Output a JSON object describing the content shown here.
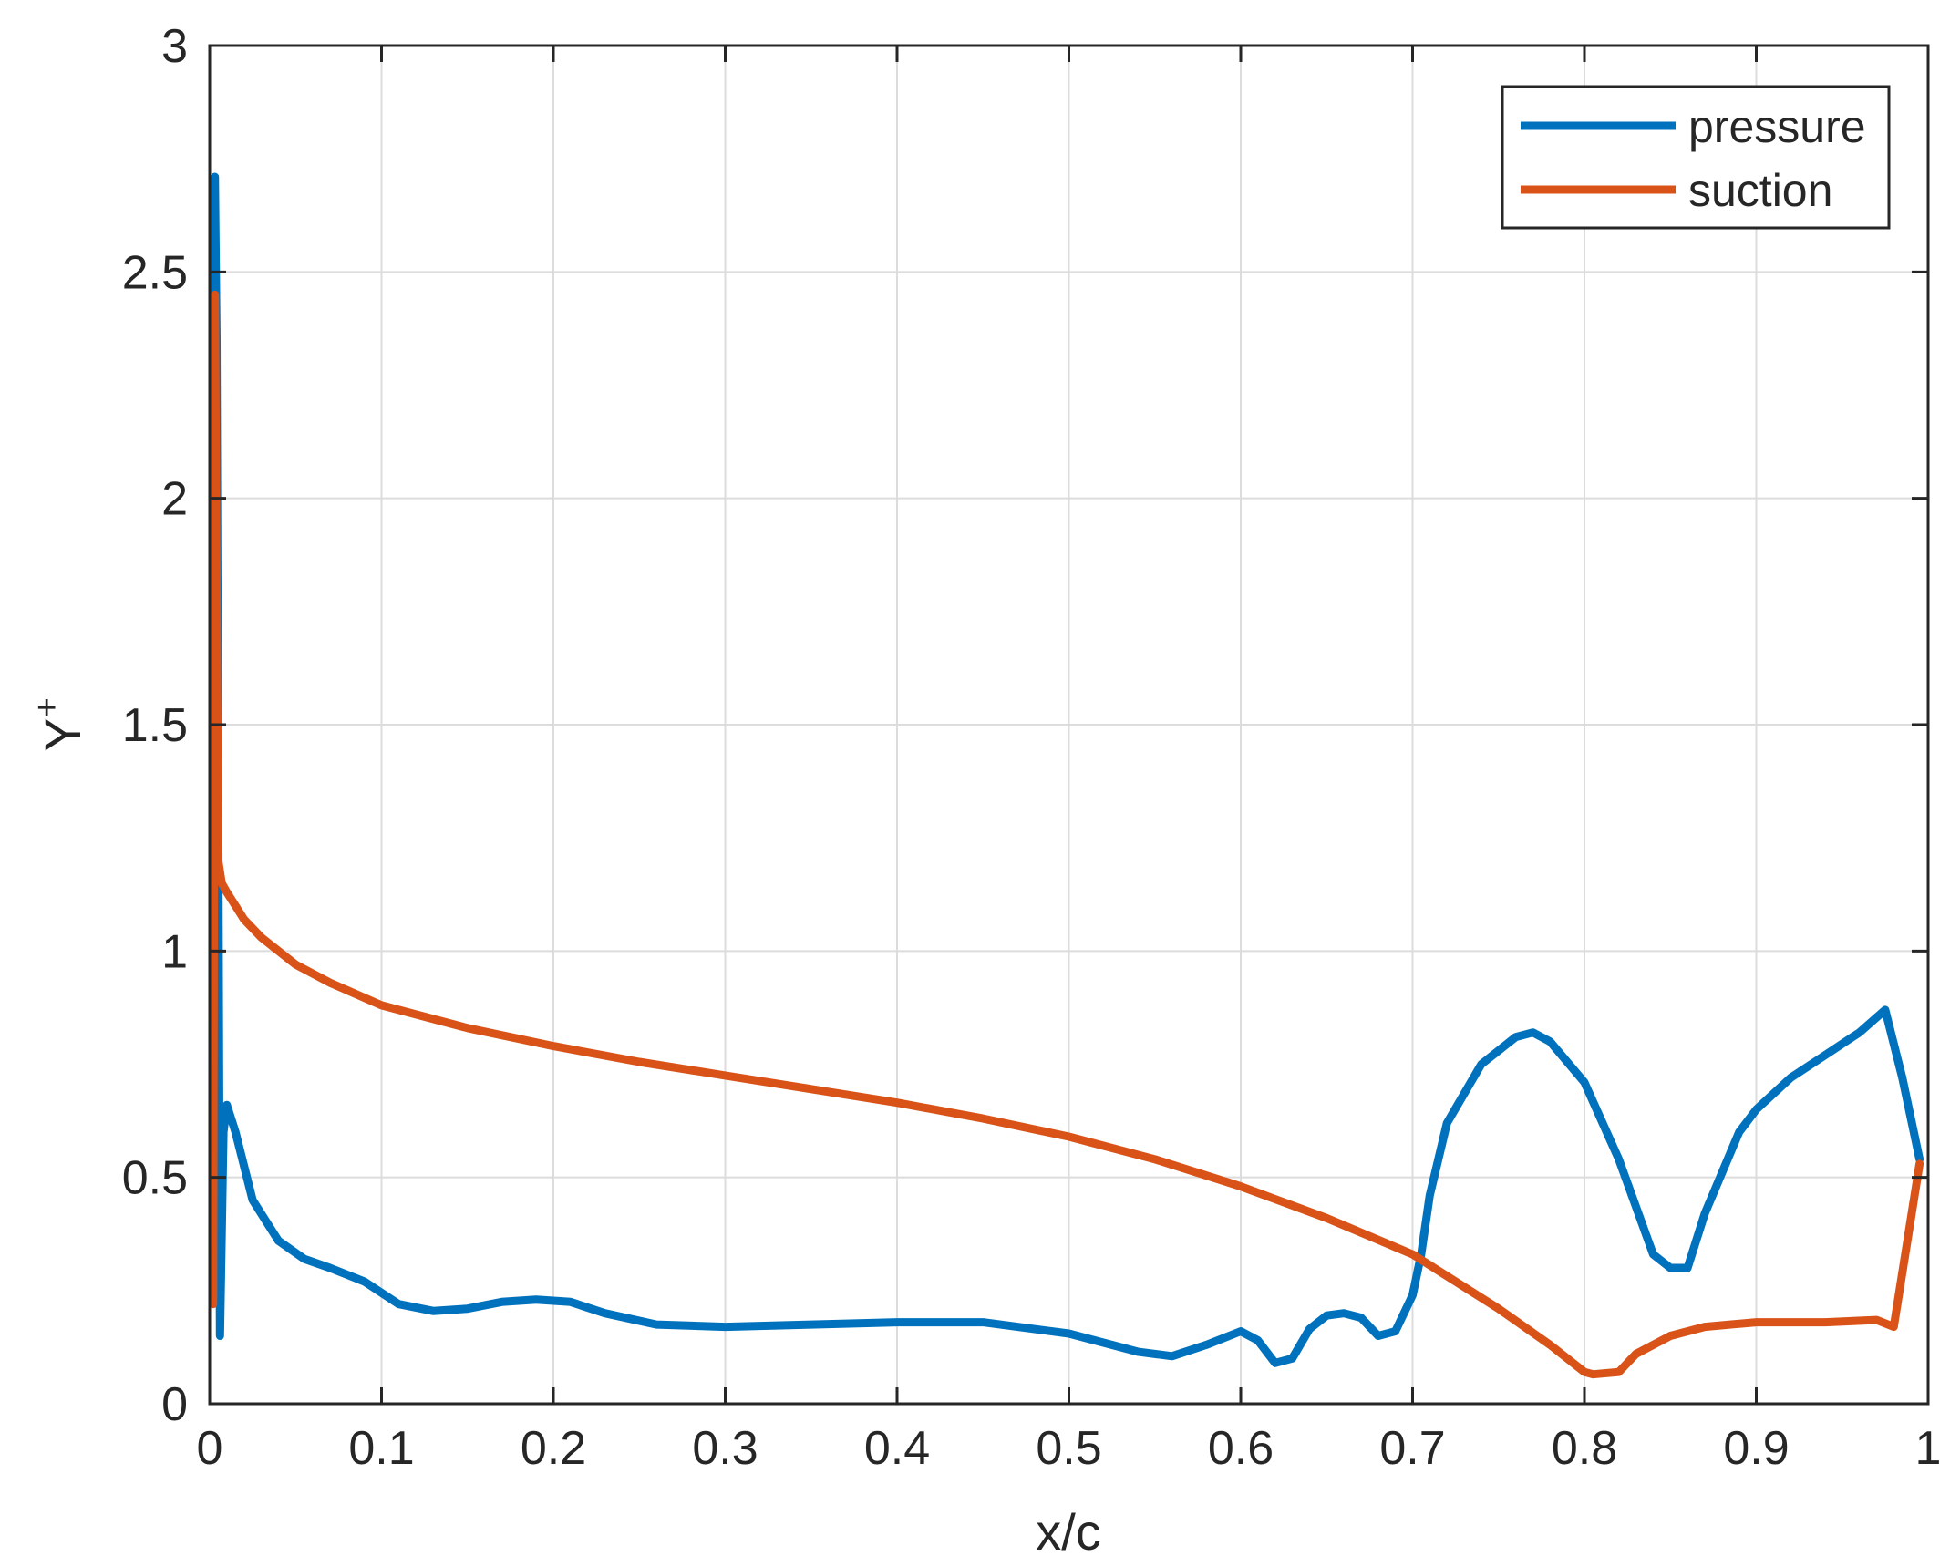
{
  "chart_data": {
    "type": "line",
    "xlabel": "x/c",
    "ylabel": "Y",
    "ylabel_superscript": "+",
    "xlim": [
      0,
      1
    ],
    "ylim": [
      0,
      3
    ],
    "xticks": [
      0,
      0.1,
      0.2,
      0.3,
      0.4,
      0.5,
      0.6,
      0.7,
      0.8,
      0.9,
      1
    ],
    "xtick_labels": [
      "0",
      "0.1",
      "0.2",
      "0.3",
      "0.4",
      "0.5",
      "0.6",
      "0.7",
      "0.8",
      "0.9",
      "1"
    ],
    "yticks": [
      0,
      0.5,
      1,
      1.5,
      2,
      2.5,
      3
    ],
    "ytick_labels": [
      "0",
      "0.5",
      "1",
      "1.5",
      "2",
      "2.5",
      "3"
    ],
    "grid": true,
    "legend_position": "top-right",
    "series": [
      {
        "name": "pressure",
        "color": "#0072BD",
        "x": [
          0.002,
          0.003,
          0.004,
          0.005,
          0.006,
          0.008,
          0.01,
          0.015,
          0.025,
          0.04,
          0.055,
          0.07,
          0.09,
          0.11,
          0.13,
          0.15,
          0.17,
          0.19,
          0.21,
          0.23,
          0.26,
          0.3,
          0.35,
          0.4,
          0.45,
          0.5,
          0.54,
          0.56,
          0.58,
          0.6,
          0.61,
          0.62,
          0.63,
          0.64,
          0.65,
          0.66,
          0.67,
          0.68,
          0.69,
          0.7,
          0.705,
          0.71,
          0.72,
          0.74,
          0.76,
          0.77,
          0.78,
          0.8,
          0.82,
          0.84,
          0.85,
          0.86,
          0.87,
          0.89,
          0.9,
          0.92,
          0.94,
          0.96,
          0.975,
          0.985,
          0.995
        ],
        "y": [
          2.45,
          2.71,
          2.35,
          1.3,
          0.15,
          0.6,
          0.66,
          0.6,
          0.45,
          0.36,
          0.32,
          0.3,
          0.27,
          0.22,
          0.205,
          0.21,
          0.225,
          0.23,
          0.225,
          0.2,
          0.175,
          0.17,
          0.175,
          0.18,
          0.18,
          0.155,
          0.115,
          0.105,
          0.13,
          0.16,
          0.14,
          0.09,
          0.1,
          0.165,
          0.195,
          0.2,
          0.19,
          0.15,
          0.16,
          0.24,
          0.33,
          0.46,
          0.62,
          0.75,
          0.81,
          0.82,
          0.8,
          0.71,
          0.54,
          0.33,
          0.3,
          0.3,
          0.42,
          0.6,
          0.65,
          0.72,
          0.77,
          0.82,
          0.87,
          0.72,
          0.54
        ]
      },
      {
        "name": "suction",
        "color": "#D95319",
        "x": [
          0.002,
          0.003,
          0.004,
          0.005,
          0.007,
          0.01,
          0.015,
          0.02,
          0.03,
          0.05,
          0.07,
          0.1,
          0.15,
          0.2,
          0.25,
          0.3,
          0.35,
          0.4,
          0.45,
          0.5,
          0.55,
          0.6,
          0.65,
          0.7,
          0.75,
          0.78,
          0.8,
          0.805,
          0.82,
          0.83,
          0.85,
          0.87,
          0.9,
          0.94,
          0.97,
          0.98,
          0.995
        ],
        "y": [
          0.22,
          2.45,
          1.8,
          1.2,
          1.15,
          1.13,
          1.1,
          1.07,
          1.03,
          0.97,
          0.93,
          0.88,
          0.83,
          0.79,
          0.755,
          0.725,
          0.695,
          0.665,
          0.63,
          0.59,
          0.54,
          0.48,
          0.41,
          0.33,
          0.21,
          0.13,
          0.07,
          0.065,
          0.07,
          0.11,
          0.15,
          0.17,
          0.18,
          0.18,
          0.185,
          0.17,
          0.53
        ]
      }
    ]
  }
}
